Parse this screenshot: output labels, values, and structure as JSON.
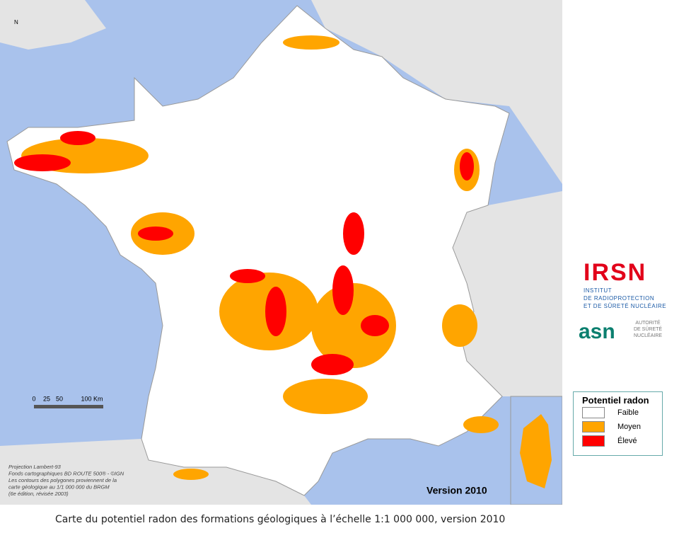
{
  "map": {
    "north": "N",
    "scale_labels": [
      "0",
      "25",
      "50",
      "100 Km"
    ],
    "notes": [
      "Projection Lambert-93",
      "Fonds cartographiques BD ROUTE 500® - ©IGN",
      "Les contours des polygones proviennent de la",
      "carte géologique au 1/1 000 000 du BRGM",
      "(6e édition, révisée 2003)"
    ],
    "version": "Version 2010"
  },
  "logos": {
    "irsn": "IRSN",
    "irsn_lines": [
      "INSTITUT",
      "DE RADIOPROTECTION",
      "ET DE SÛRETÉ NUCLÉAIRE"
    ],
    "asn": "asn",
    "asn_lines": [
      "AUTORITÉ",
      "DE SÛRETÉ",
      "NUCLÉAIRE"
    ]
  },
  "legend": {
    "title": "Potentiel radon",
    "items": [
      {
        "label": "Faible",
        "color": "#ffffff"
      },
      {
        "label": "Moyen",
        "color": "#ffa500"
      },
      {
        "label": "Élevé",
        "color": "#ff0000"
      }
    ]
  },
  "caption": "Carte du potentiel radon des formations géologiques à l’échelle 1:1 000 000, version 2010"
}
